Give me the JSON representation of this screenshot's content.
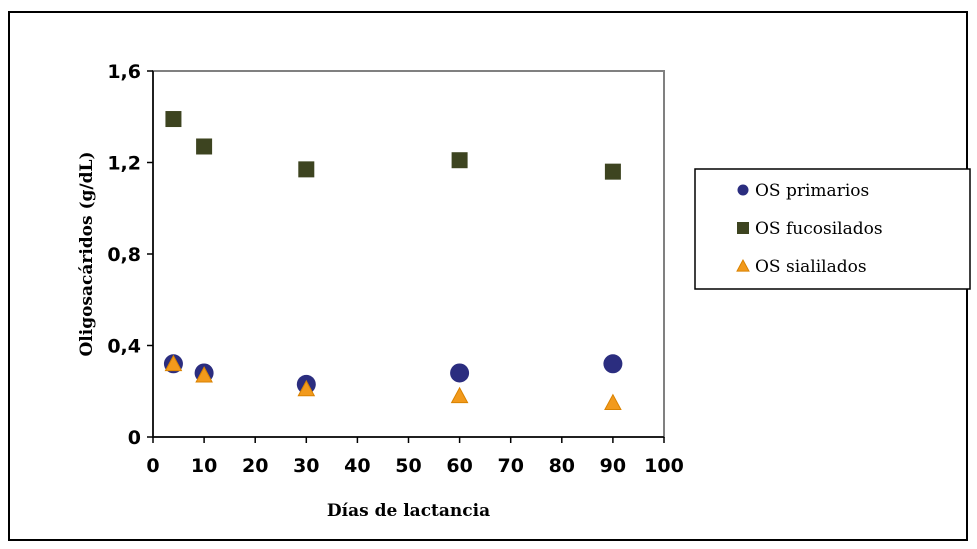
{
  "chart_data": {
    "type": "scatter",
    "xlabel": "Días de lactancia",
    "ylabel": "Oligosacáridos (g/dL)",
    "xlim": [
      0,
      100
    ],
    "ylim": [
      0,
      1.6
    ],
    "x_ticks": [
      "0",
      "10",
      "20",
      "30",
      "40",
      "50",
      "60",
      "70",
      "80",
      "90",
      "100"
    ],
    "y_ticks": [
      "0",
      "0,4",
      "0,8",
      "1,2",
      "1,6"
    ],
    "grid": false,
    "legend_position": "right",
    "series": [
      {
        "name": "OS primarios",
        "marker": "circle",
        "color": "#2b2d7f",
        "x": [
          4,
          10,
          30,
          60,
          90
        ],
        "y": [
          0.32,
          0.28,
          0.23,
          0.28,
          0.32
        ]
      },
      {
        "name": "OS fucosilados",
        "marker": "square",
        "color": "#3d4420",
        "x": [
          4,
          10,
          30,
          60,
          90
        ],
        "y": [
          1.39,
          1.27,
          1.17,
          1.21,
          1.16
        ]
      },
      {
        "name": "OS sialilados",
        "marker": "triangle",
        "color": "#f29a1c",
        "x": [
          4,
          10,
          30,
          60,
          90
        ],
        "y": [
          0.32,
          0.27,
          0.21,
          0.18,
          0.15
        ]
      }
    ]
  }
}
